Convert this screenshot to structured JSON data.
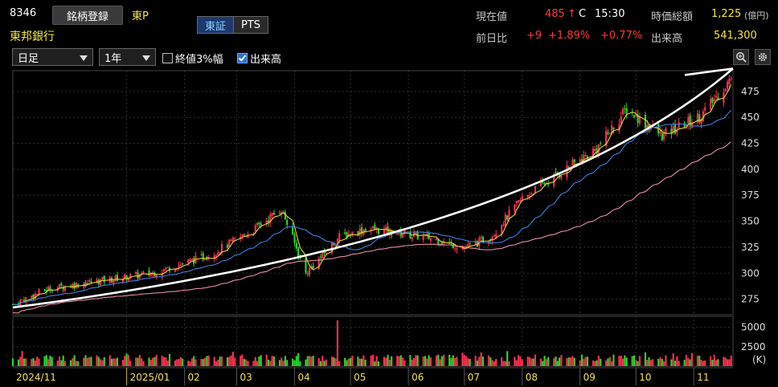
{
  "header": {
    "code": "8346",
    "register_button": "銘柄登録",
    "market": "東P",
    "company": "東邦銀行",
    "exchange_tabs": [
      "東証",
      "PTS"
    ],
    "current_price_label": "現在値",
    "current_price": "485",
    "price_arrow": "↑",
    "price_flag": "C",
    "time": "15:30",
    "market_cap_label": "時価総額",
    "market_cap": "1,225",
    "market_cap_unit": "(億円)",
    "prev_diff_label": "前日比",
    "diff": "+9",
    "diff_pct": "+1.89%",
    "diff_pct2": "+0.77%",
    "volume_label": "出来高",
    "volume": "541,300"
  },
  "toolbar": {
    "period_select": "日足",
    "range_select": "1年",
    "opt_close3": "終値3%幅",
    "opt_close3_checked": false,
    "opt_volume": "出来高",
    "opt_volume_checked": true,
    "zoom_icon": "magnifier-icon",
    "settings_icon": "gear-icon"
  },
  "chart_data": {
    "type": "candlestick",
    "price_axis": {
      "ticks": [
        275,
        300,
        325,
        350,
        375,
        400,
        425,
        450,
        475
      ],
      "ylim": [
        260,
        495
      ]
    },
    "volume_axis": {
      "ticks": [
        2500,
        5000
      ],
      "ylim": [
        0,
        6000
      ],
      "unit_label": "(K)"
    },
    "x_labels": [
      "2024/11",
      "2025/01",
      "02",
      "03",
      "04",
      "05",
      "06",
      "07",
      "08",
      "09",
      "10",
      "11"
    ],
    "close_anchors": [
      [
        "2024-11-01",
        270
      ],
      [
        "2024-11-20",
        285
      ],
      [
        "2024-12-15",
        292
      ],
      [
        "2025-01-15",
        300
      ],
      [
        "2025-02-15",
        318
      ],
      [
        "2025-03-10",
        342
      ],
      [
        "2025-03-25",
        362
      ],
      [
        "2025-04-07",
        300
      ],
      [
        "2025-04-25",
        335
      ],
      [
        "2025-05-10",
        343
      ],
      [
        "2025-05-30",
        338
      ],
      [
        "2025-06-15",
        333
      ],
      [
        "2025-07-01",
        324
      ],
      [
        "2025-07-15",
        335
      ],
      [
        "2025-08-01",
        372
      ],
      [
        "2025-08-20",
        395
      ],
      [
        "2025-09-10",
        420
      ],
      [
        "2025-09-26",
        458
      ],
      [
        "2025-10-15",
        432
      ],
      [
        "2025-11-05",
        452
      ],
      [
        "2025-11-20",
        485
      ]
    ],
    "trendline": {
      "from": [
        "2024-11-01",
        267
      ],
      "to": [
        "2025-11-22",
        497
      ]
    },
    "moving_averages": [
      {
        "color": "#e8d23a"
      },
      {
        "color": "#3f7fe0"
      },
      {
        "color": "#e890a0"
      }
    ],
    "up_color": "#ff3050",
    "down_color": "#2bd62b",
    "grid": true
  }
}
